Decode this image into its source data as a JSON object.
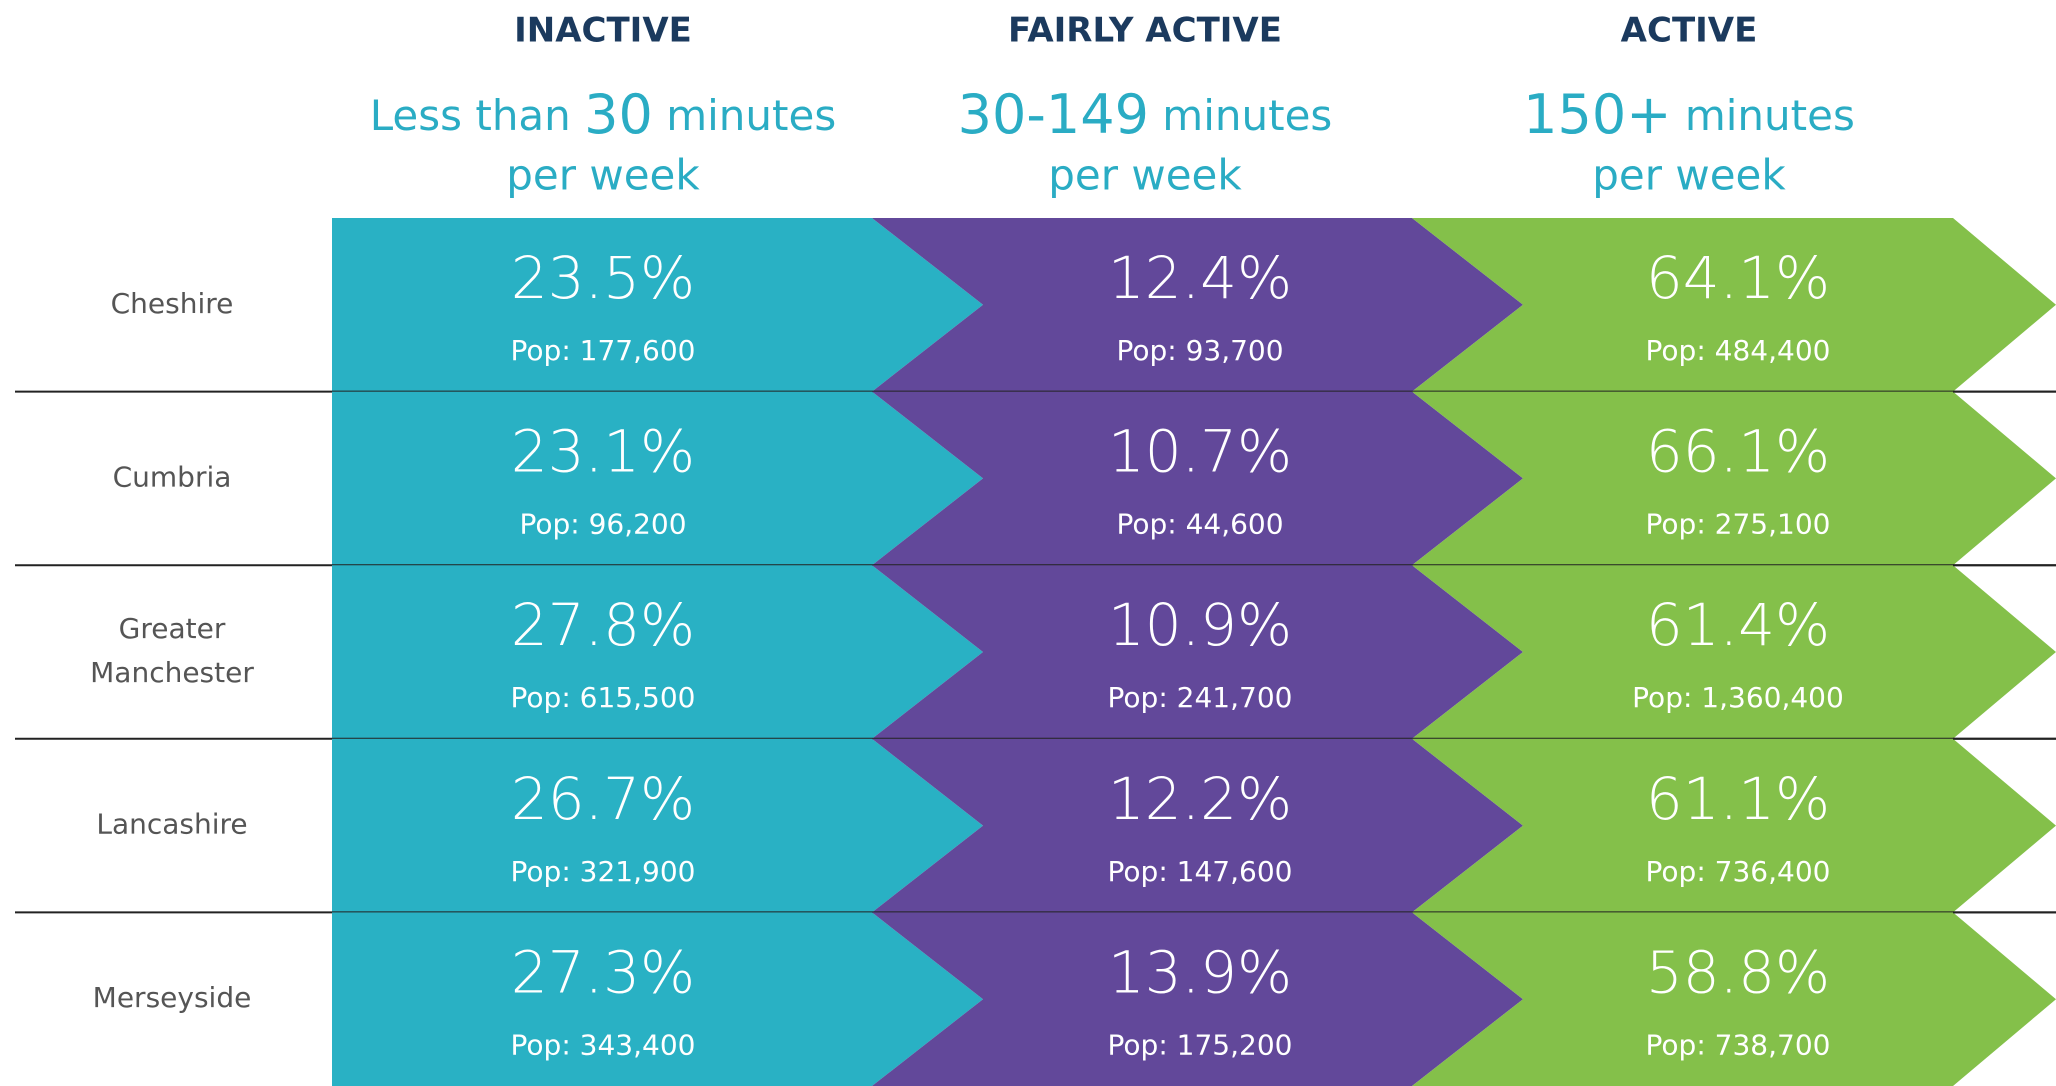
{
  "columns": [
    {
      "title": "INACTIVE",
      "desc_pre": "Less than ",
      "desc_num": "30",
      "desc_post": " minutes",
      "desc_line2": "per week"
    },
    {
      "title": "FAIRLY ACTIVE",
      "desc_pre": "",
      "desc_num": "30-149",
      "desc_post": " minutes",
      "desc_line2": "per week"
    },
    {
      "title": "ACTIVE",
      "desc_pre": "",
      "desc_num": "150+",
      "desc_post": " minutes",
      "desc_line2": "per week"
    }
  ],
  "rows": [
    {
      "region": [
        "Cheshire"
      ],
      "cells": [
        {
          "pct": "23.5%",
          "pop": "Pop: 177,600"
        },
        {
          "pct": "12.4%",
          "pop": "Pop: 93,700"
        },
        {
          "pct": "64.1%",
          "pop": "Pop: 484,400"
        }
      ]
    },
    {
      "region": [
        "Cumbria"
      ],
      "cells": [
        {
          "pct": "23.1%",
          "pop": "Pop: 96,200"
        },
        {
          "pct": "10.7%",
          "pop": "Pop: 44,600"
        },
        {
          "pct": "66.1%",
          "pop": "Pop: 275,100"
        }
      ]
    },
    {
      "region": [
        "Greater",
        "Manchester"
      ],
      "cells": [
        {
          "pct": "27.8%",
          "pop": "Pop: 615,500"
        },
        {
          "pct": "10.9%",
          "pop": "Pop: 241,700"
        },
        {
          "pct": "61.4%",
          "pop": "Pop: 1,360,400"
        }
      ]
    },
    {
      "region": [
        "Lancashire"
      ],
      "cells": [
        {
          "pct": "26.7%",
          "pop": "Pop: 321,900"
        },
        {
          "pct": "12.2%",
          "pop": "Pop: 147,600"
        },
        {
          "pct": "61.1%",
          "pop": "Pop: 736,400"
        }
      ]
    },
    {
      "region": [
        "Merseyside"
      ],
      "cells": [
        {
          "pct": "27.3%",
          "pop": "Pop: 343,400"
        },
        {
          "pct": "13.9%",
          "pop": "Pop: 175,200"
        },
        {
          "pct": "58.8%",
          "pop": "Pop: 738,700"
        }
      ]
    }
  ]
}
